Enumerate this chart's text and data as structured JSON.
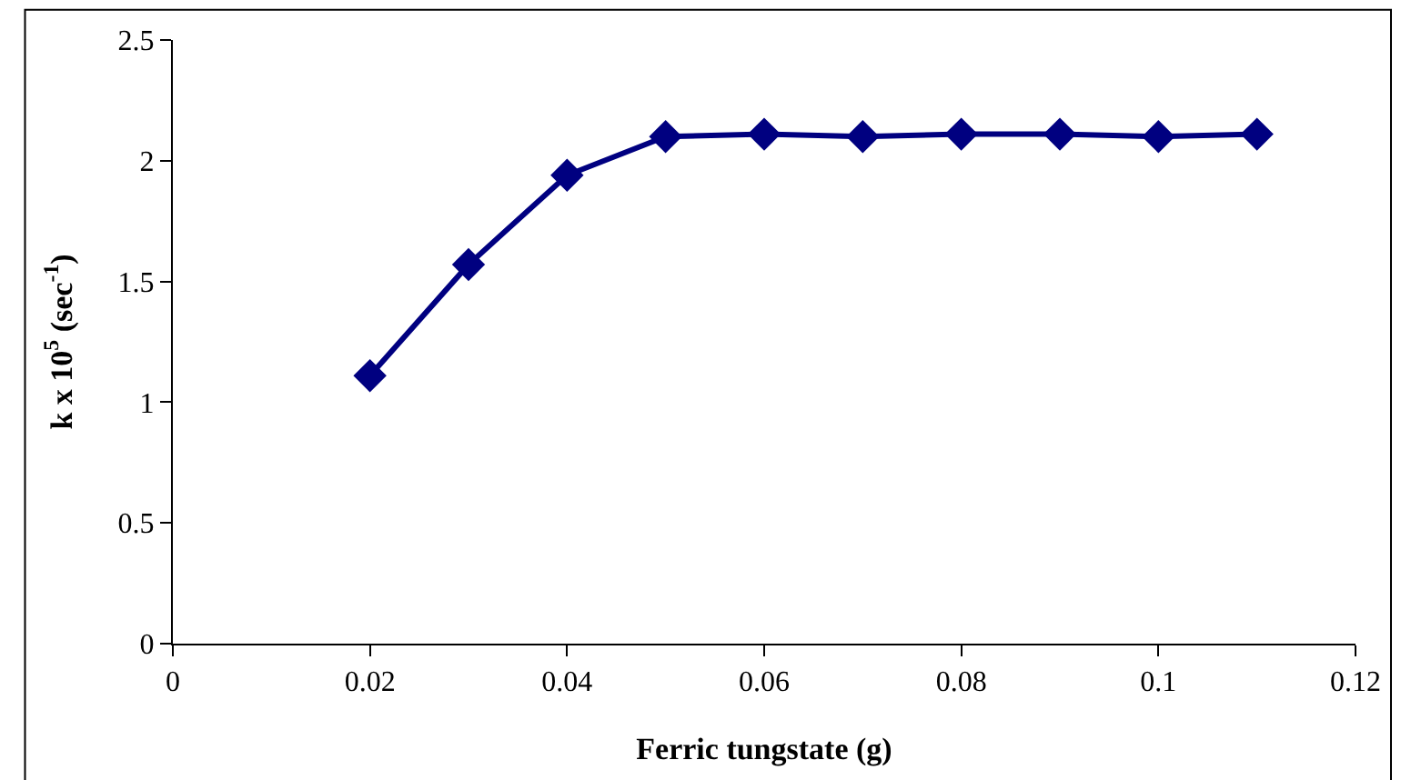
{
  "chart_data": {
    "type": "line",
    "xlabel": "Ferric tungstate (g)",
    "ylabel": "k x 10$^{5}$ (sec$^{-1}$)",
    "x": [
      0.02,
      0.03,
      0.04,
      0.05,
      0.06,
      0.07,
      0.08,
      0.09,
      0.1,
      0.11
    ],
    "series": [
      {
        "color": "#000080",
        "values": [
          1.11,
          1.57,
          1.94,
          2.1,
          2.11,
          2.1,
          2.11,
          2.11,
          2.1,
          2.11
        ]
      }
    ],
    "xlim": [
      0,
      0.12
    ],
    "xticks": [
      0,
      0.02,
      0.04,
      0.06,
      0.08,
      0.1,
      0.12
    ],
    "ylim": [
      0,
      2.5
    ],
    "yticks": [
      0,
      0.5,
      1,
      1.5,
      2,
      2.5
    ],
    "grid": false,
    "legend": false,
    "marker": "diamond",
    "line_style": "solid"
  }
}
